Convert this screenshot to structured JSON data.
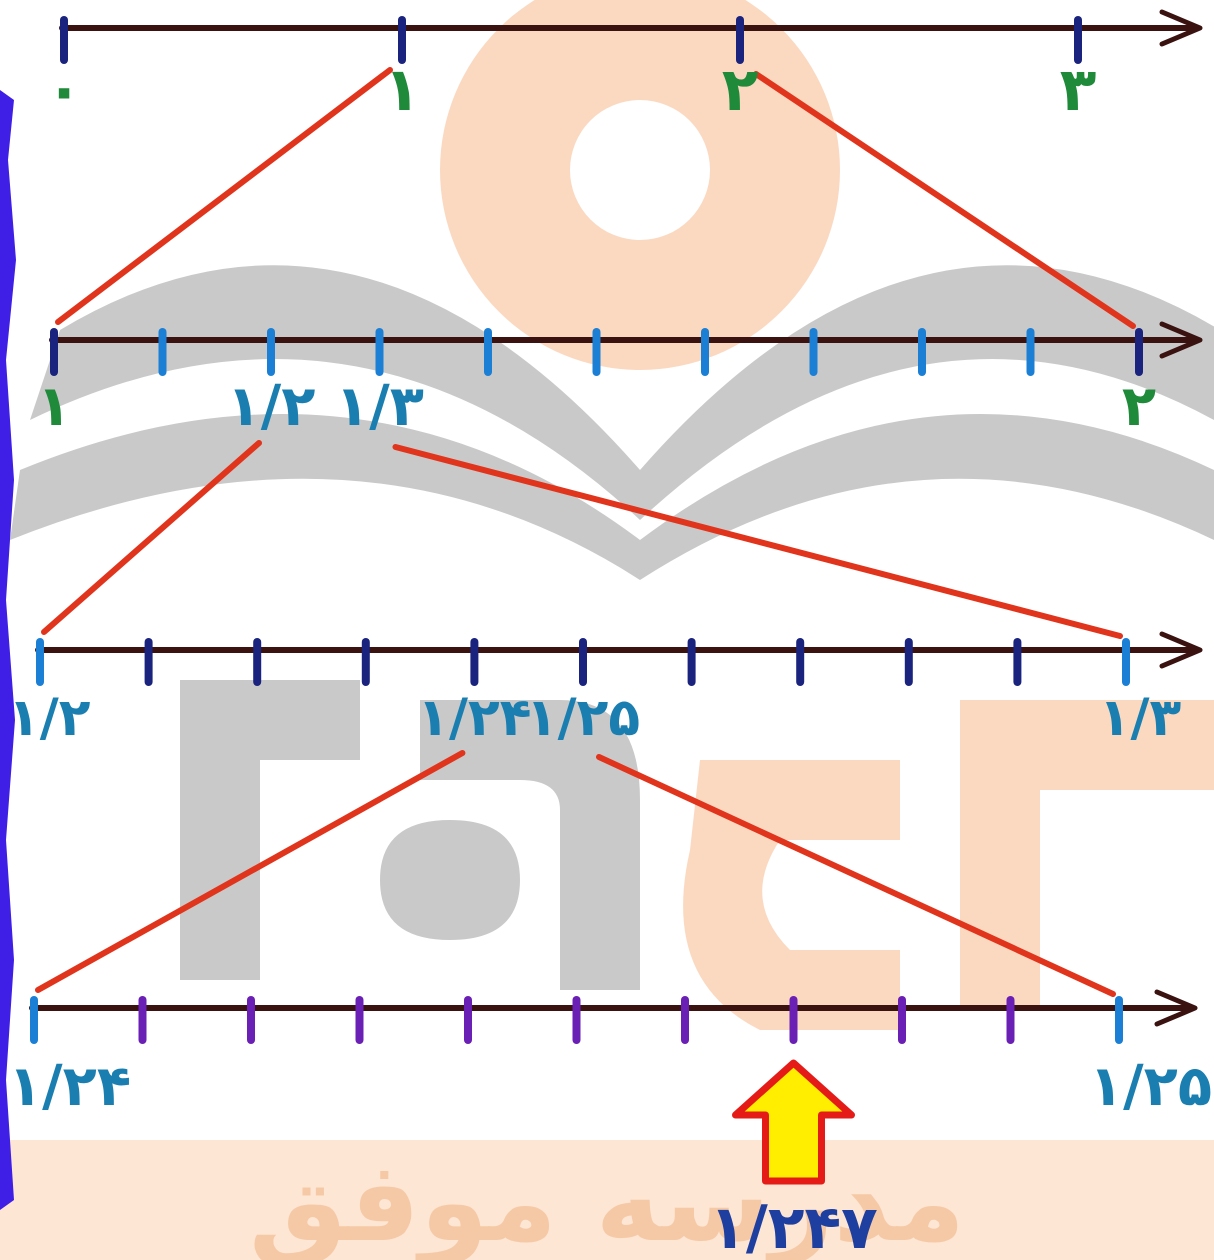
{
  "colors": {
    "axis": "#3a1210",
    "connector": "#e0341c",
    "label_green": "#1f8a3a",
    "label_blue": "#1f3fa0",
    "label_teal": "#1a7fb0",
    "label_red": "#d8252a",
    "tick_blue": "#1b7fd6",
    "tick_navy": "#1a237e",
    "tick_purple": "#6a1fb5",
    "arrow_fill": "#ffee00",
    "arrow_stroke": "#e41b17",
    "watermark_peach": "#fbd9c0",
    "watermark_gray": "#c9c9c9",
    "edge_blue": "#3f1ee6"
  },
  "lines": [
    {
      "id": "line-0-3",
      "labels": [
        {
          "text": "۰",
          "at": 0
        },
        {
          "text": "۱",
          "at": 1
        },
        {
          "text": "۲",
          "at": 2
        },
        {
          "text": "۳",
          "at": 3
        }
      ]
    },
    {
      "id": "line-1-2",
      "labels": [
        {
          "text": "۱",
          "at": 0
        },
        {
          "text": "۱/۲",
          "at": 2
        },
        {
          "text": "۱/۳",
          "at": 3
        },
        {
          "text": "۲",
          "at": 10
        }
      ]
    },
    {
      "id": "line-12-13",
      "labels": [
        {
          "text": "۱/۲",
          "at": 0
        },
        {
          "text": "۱/۲۴",
          "at": 4
        },
        {
          "text": "۱/۲۵",
          "at": 5
        },
        {
          "text": "۱/۳",
          "at": 10
        }
      ]
    },
    {
      "id": "line-124-125",
      "labels": [
        {
          "text": "۱/۲۴",
          "at": 0
        },
        {
          "text": "۱/۲۵",
          "at": 10
        }
      ]
    }
  ],
  "marker": {
    "text": "۱/۲۴۷",
    "line": 3,
    "at": 7
  },
  "watermark": {
    "text": "مدرسه موفق"
  }
}
